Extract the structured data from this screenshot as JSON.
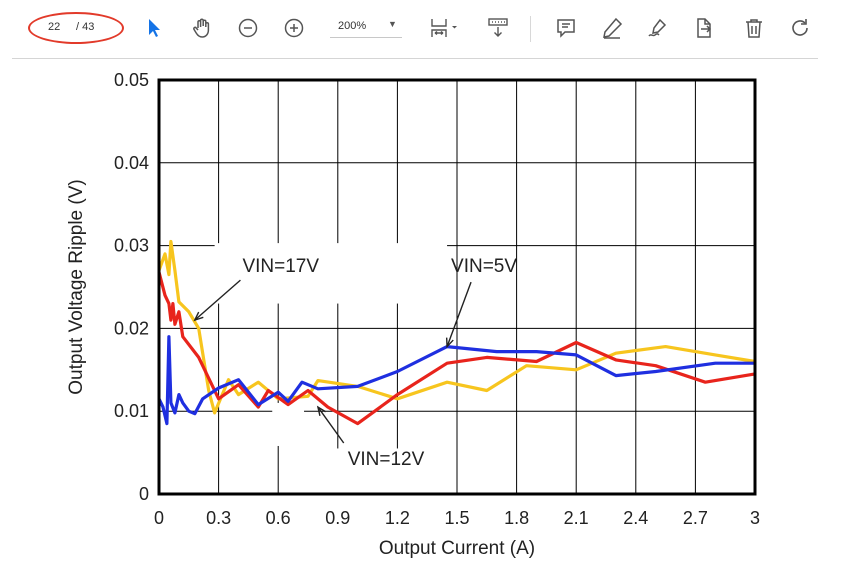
{
  "toolbar": {
    "page_current": "22",
    "page_total": "/ 43",
    "zoom": "200%",
    "icons": [
      "select-arrow-icon",
      "hand-tool-icon",
      "zoom-out-icon",
      "zoom-in-icon",
      "fit-page-icon",
      "scroll-mode-icon",
      "comment-icon",
      "highlight-pen-icon",
      "sign-icon",
      "export-icon",
      "trash-icon",
      "rotate-icon"
    ],
    "accent": "#1473e6",
    "annotation_oval_color": "#e23a2a"
  },
  "chart_data": {
    "type": "line",
    "xlabel": "Output Current (A)",
    "ylabel": "Output Voltage Ripple (V)",
    "xlim": [
      0,
      3
    ],
    "ylim": [
      0,
      0.05
    ],
    "x_ticks": [
      "0",
      "0.3",
      "0.6",
      "0.9",
      "1.2",
      "1.5",
      "1.8",
      "2.1",
      "2.4",
      "2.7",
      "3"
    ],
    "y_ticks": [
      "0",
      "0.01",
      "0.02",
      "0.03",
      "0.04",
      "0.05"
    ],
    "grid": true,
    "series": [
      {
        "name": "VIN=5V",
        "color": "#1f2fe0",
        "points": [
          [
            0.0,
            0.0115
          ],
          [
            0.02,
            0.0105
          ],
          [
            0.04,
            0.0085
          ],
          [
            0.05,
            0.019
          ],
          [
            0.06,
            0.011
          ],
          [
            0.08,
            0.0098
          ],
          [
            0.1,
            0.012
          ],
          [
            0.12,
            0.011
          ],
          [
            0.15,
            0.01
          ],
          [
            0.18,
            0.0097
          ],
          [
            0.22,
            0.0115
          ],
          [
            0.3,
            0.0128
          ],
          [
            0.4,
            0.0138
          ],
          [
            0.5,
            0.0108
          ],
          [
            0.6,
            0.0123
          ],
          [
            0.65,
            0.0112
          ],
          [
            0.72,
            0.0135
          ],
          [
            0.8,
            0.0127
          ],
          [
            1.0,
            0.013
          ],
          [
            1.2,
            0.0148
          ],
          [
            1.45,
            0.0178
          ],
          [
            1.7,
            0.0172
          ],
          [
            1.9,
            0.0172
          ],
          [
            2.1,
            0.0168
          ],
          [
            2.3,
            0.0143
          ],
          [
            2.5,
            0.0148
          ],
          [
            2.8,
            0.0158
          ],
          [
            3.0,
            0.0158
          ]
        ]
      },
      {
        "name": "VIN=12V",
        "color": "#e8241c",
        "points": [
          [
            0.0,
            0.0268
          ],
          [
            0.03,
            0.024
          ],
          [
            0.05,
            0.023
          ],
          [
            0.06,
            0.021
          ],
          [
            0.07,
            0.023
          ],
          [
            0.08,
            0.0205
          ],
          [
            0.1,
            0.022
          ],
          [
            0.12,
            0.019
          ],
          [
            0.2,
            0.0165
          ],
          [
            0.3,
            0.0115
          ],
          [
            0.4,
            0.0132
          ],
          [
            0.5,
            0.0105
          ],
          [
            0.55,
            0.0125
          ],
          [
            0.65,
            0.0108
          ],
          [
            0.75,
            0.0125
          ],
          [
            0.85,
            0.0105
          ],
          [
            1.0,
            0.0085
          ],
          [
            1.2,
            0.012
          ],
          [
            1.45,
            0.0158
          ],
          [
            1.65,
            0.0165
          ],
          [
            1.9,
            0.016
          ],
          [
            2.1,
            0.0183
          ],
          [
            2.3,
            0.0162
          ],
          [
            2.5,
            0.0155
          ],
          [
            2.75,
            0.0135
          ],
          [
            3.0,
            0.0145
          ]
        ]
      },
      {
        "name": "VIN=17V",
        "color": "#f7c51e",
        "points": [
          [
            0.0,
            0.027
          ],
          [
            0.03,
            0.029
          ],
          [
            0.05,
            0.0265
          ],
          [
            0.06,
            0.0305
          ],
          [
            0.08,
            0.027
          ],
          [
            0.1,
            0.0232
          ],
          [
            0.15,
            0.022
          ],
          [
            0.2,
            0.02
          ],
          [
            0.25,
            0.0125
          ],
          [
            0.28,
            0.0098
          ],
          [
            0.35,
            0.0138
          ],
          [
            0.4,
            0.012
          ],
          [
            0.5,
            0.0135
          ],
          [
            0.6,
            0.0115
          ],
          [
            0.75,
            0.0118
          ],
          [
            0.8,
            0.0137
          ],
          [
            1.0,
            0.013
          ],
          [
            1.2,
            0.0115
          ],
          [
            1.45,
            0.0135
          ],
          [
            1.65,
            0.0125
          ],
          [
            1.85,
            0.0155
          ],
          [
            2.1,
            0.015
          ],
          [
            2.3,
            0.017
          ],
          [
            2.55,
            0.0178
          ],
          [
            2.8,
            0.0168
          ],
          [
            3.0,
            0.016
          ]
        ]
      }
    ],
    "annotations": [
      {
        "text": "VIN=17V",
        "label_x": 0.42,
        "label_y": 0.0268,
        "arrow_to": [
          0.18,
          0.021
        ]
      },
      {
        "text": "VIN=5V",
        "label_x": 1.47,
        "label_y": 0.0268,
        "arrow_to": [
          1.45,
          0.0178
        ]
      },
      {
        "text": "VIN=12V",
        "label_x": 0.95,
        "label_y": 0.0035,
        "arrow_to": [
          0.8,
          0.0105
        ]
      }
    ]
  }
}
